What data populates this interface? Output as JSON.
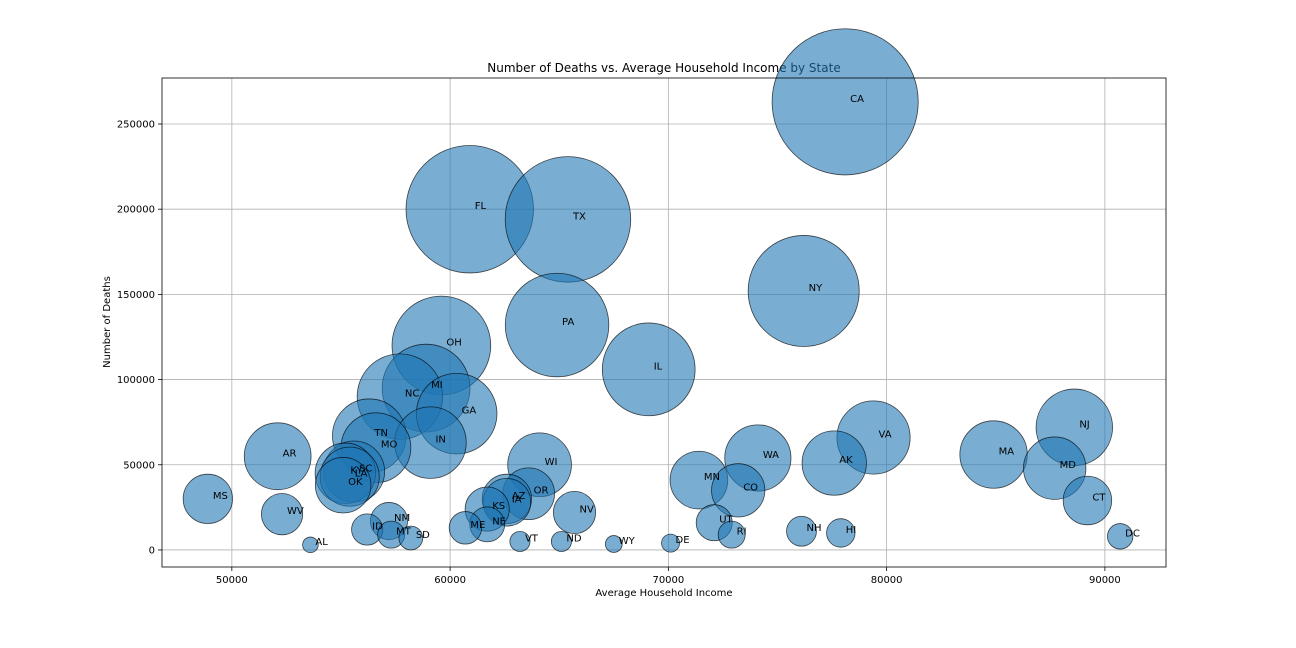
{
  "chart_data": {
    "type": "scatter",
    "title": "Number of Deaths vs. Average Household Income by State",
    "xlabel": "Average Household Income",
    "ylabel": "Number of Deaths",
    "xlim": [
      46800,
      92800
    ],
    "ylim": [
      -10000,
      277000
    ],
    "xticks": [
      50000,
      60000,
      70000,
      80000,
      90000
    ],
    "yticks": [
      0,
      50000,
      100000,
      150000,
      200000,
      250000
    ],
    "grid": true,
    "color": "#1f77b4",
    "alpha": 0.6,
    "size_encodes": "Number of Deaths",
    "points": [
      {
        "label": "CA",
        "x": 78100,
        "y": 263000
      },
      {
        "label": "FL",
        "x": 60900,
        "y": 200000
      },
      {
        "label": "TX",
        "x": 65400,
        "y": 194000
      },
      {
        "label": "NY",
        "x": 76200,
        "y": 152000
      },
      {
        "label": "PA",
        "x": 64900,
        "y": 132000
      },
      {
        "label": "OH",
        "x": 59600,
        "y": 120000
      },
      {
        "label": "IL",
        "x": 69100,
        "y": 106000
      },
      {
        "label": "MI",
        "x": 58900,
        "y": 95000
      },
      {
        "label": "NC",
        "x": 57700,
        "y": 90000
      },
      {
        "label": "GA",
        "x": 60300,
        "y": 80000
      },
      {
        "label": "NJ",
        "x": 88600,
        "y": 72000
      },
      {
        "label": "TN",
        "x": 56300,
        "y": 67000
      },
      {
        "label": "VA",
        "x": 79400,
        "y": 66000
      },
      {
        "label": "IN",
        "x": 59100,
        "y": 63000
      },
      {
        "label": "MO",
        "x": 56600,
        "y": 60000
      },
      {
        "label": "MA",
        "x": 84900,
        "y": 56000
      },
      {
        "label": "AR",
        "x": 52100,
        "y": 55000
      },
      {
        "label": "WA",
        "x": 74100,
        "y": 54000
      },
      {
        "label": "AK",
        "x": 77600,
        "y": 51000
      },
      {
        "label": "WI",
        "x": 64100,
        "y": 50000
      },
      {
        "label": "MD",
        "x": 87700,
        "y": 48000
      },
      {
        "label": "SC",
        "x": 55600,
        "y": 46000
      },
      {
        "label": "KY",
        "x": 55200,
        "y": 45000
      },
      {
        "label": "LA",
        "x": 55400,
        "y": 43000
      },
      {
        "label": "MN",
        "x": 71400,
        "y": 41000
      },
      {
        "label": "OK",
        "x": 55100,
        "y": 38000
      },
      {
        "label": "CO",
        "x": 73200,
        "y": 35000
      },
      {
        "label": "OR",
        "x": 63600,
        "y": 33000
      },
      {
        "label": "AZ",
        "x": 62600,
        "y": 30000
      },
      {
        "label": "MS",
        "x": 48900,
        "y": 30000
      },
      {
        "label": "CT",
        "x": 89200,
        "y": 29000
      },
      {
        "label": "IA",
        "x": 62600,
        "y": 28000
      },
      {
        "label": "KS",
        "x": 61700,
        "y": 24000
      },
      {
        "label": "NV",
        "x": 65700,
        "y": 22000
      },
      {
        "label": "WV",
        "x": 52300,
        "y": 21000
      },
      {
        "label": "NM",
        "x": 57200,
        "y": 17000
      },
      {
        "label": "UT",
        "x": 72100,
        "y": 16000
      },
      {
        "label": "NE",
        "x": 61700,
        "y": 15000
      },
      {
        "label": "ME",
        "x": 60700,
        "y": 13000
      },
      {
        "label": "ID",
        "x": 56200,
        "y": 12000
      },
      {
        "label": "NH",
        "x": 76100,
        "y": 11000
      },
      {
        "label": "HI",
        "x": 77900,
        "y": 10000
      },
      {
        "label": "MT",
        "x": 57300,
        "y": 9000
      },
      {
        "label": "RI",
        "x": 72900,
        "y": 9000
      },
      {
        "label": "DC",
        "x": 90700,
        "y": 8000
      },
      {
        "label": "SD",
        "x": 58200,
        "y": 7000
      },
      {
        "label": "ND",
        "x": 65100,
        "y": 5000
      },
      {
        "label": "VT",
        "x": 63200,
        "y": 5000
      },
      {
        "label": "DE",
        "x": 70100,
        "y": 4000
      },
      {
        "label": "WY",
        "x": 67500,
        "y": 3500
      },
      {
        "label": "AL",
        "x": 53600,
        "y": 3000
      }
    ]
  }
}
